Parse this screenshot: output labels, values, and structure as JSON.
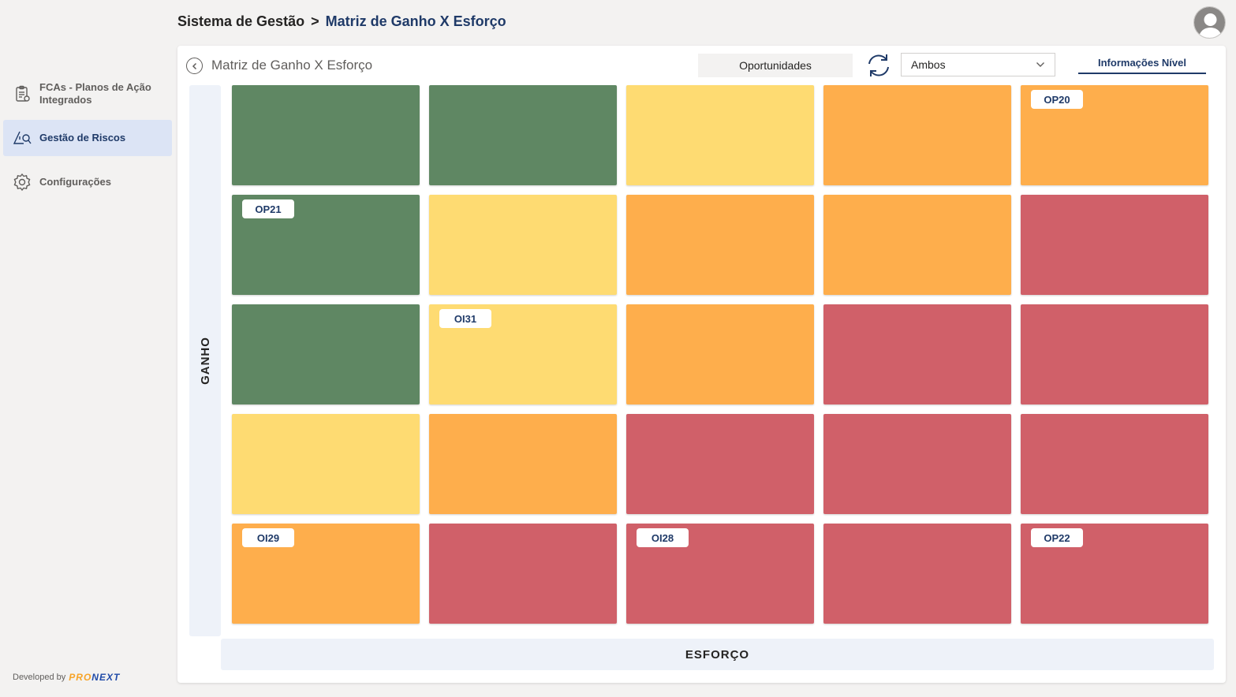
{
  "header": {
    "breadcrumb_root": "Sistema de Gestão",
    "breadcrumb_sep": ">",
    "breadcrumb_current": "Matriz de Ganho X Esforço"
  },
  "sidebar": {
    "items": [
      {
        "label": "FCAs - Planos de Ação Integrados",
        "icon": "clipboard-icon",
        "active": false
      },
      {
        "label": "Gestão de Riscos",
        "icon": "risk-search-icon",
        "active": true
      },
      {
        "label": "Configurações",
        "icon": "gear-icon",
        "active": false
      }
    ],
    "developed_by": "Developed by",
    "logo_pro": "PRO",
    "logo_next": "NEXT"
  },
  "card": {
    "title": "Matriz de Ganho X Esforço",
    "type_label": "Oportunidades",
    "filter_value": "Ambos",
    "info_tab": "Informações Nível"
  },
  "axes": {
    "y_label": "GANHO",
    "x_label": "ESFORÇO"
  },
  "colors": {
    "green": "#5f8763",
    "yellow": "#fedb72",
    "orange": "#feae4c",
    "red": "#d06069",
    "accent": "#1f3a68"
  },
  "matrix": {
    "rows": [
      {
        "cells": [
          {
            "color": "green",
            "tag": ""
          },
          {
            "color": "green",
            "tag": ""
          },
          {
            "color": "yellow",
            "tag": ""
          },
          {
            "color": "orange",
            "tag": ""
          },
          {
            "color": "orange",
            "tag": "OP20"
          }
        ]
      },
      {
        "cells": [
          {
            "color": "green",
            "tag": "OP21"
          },
          {
            "color": "yellow",
            "tag": ""
          },
          {
            "color": "orange",
            "tag": ""
          },
          {
            "color": "orange",
            "tag": ""
          },
          {
            "color": "red",
            "tag": ""
          }
        ]
      },
      {
        "cells": [
          {
            "color": "green",
            "tag": ""
          },
          {
            "color": "yellow",
            "tag": "OI31"
          },
          {
            "color": "orange",
            "tag": ""
          },
          {
            "color": "red",
            "tag": ""
          },
          {
            "color": "red",
            "tag": ""
          }
        ]
      },
      {
        "cells": [
          {
            "color": "yellow",
            "tag": ""
          },
          {
            "color": "orange",
            "tag": ""
          },
          {
            "color": "red",
            "tag": ""
          },
          {
            "color": "red",
            "tag": ""
          },
          {
            "color": "red",
            "tag": ""
          }
        ]
      },
      {
        "cells": [
          {
            "color": "orange",
            "tag": "OI29"
          },
          {
            "color": "red",
            "tag": ""
          },
          {
            "color": "red",
            "tag": "OI28"
          },
          {
            "color": "red",
            "tag": ""
          },
          {
            "color": "red",
            "tag": "OP22"
          }
        ]
      }
    ]
  }
}
